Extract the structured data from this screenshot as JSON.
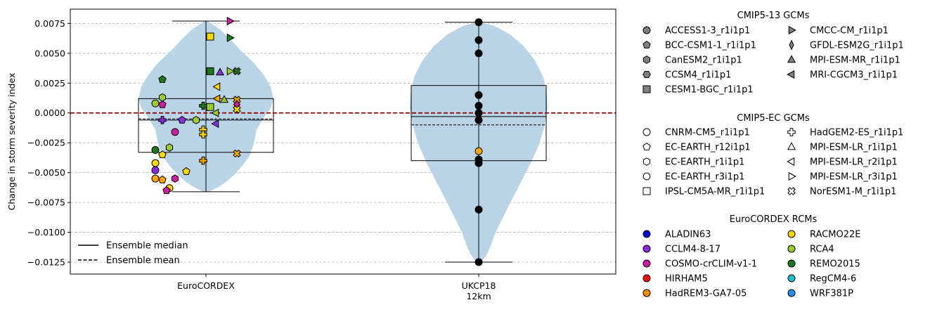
{
  "chart_data": {
    "type": "violin-scatter",
    "ylabel": "Change in storm severity index",
    "ylim": [
      -0.0135,
      0.0087
    ],
    "yticks": [
      0.0075,
      0.005,
      0.0025,
      0.0,
      -0.0025,
      -0.005,
      -0.0075,
      -0.01,
      -0.0125
    ],
    "ytick_labels": [
      "0.0075",
      "0.0050",
      "0.0025",
      "0.0000",
      "−0.0025",
      "−0.0050",
      "−0.0075",
      "−0.0100",
      "−0.0125"
    ],
    "grid": "horizontal dashed",
    "reference_line": {
      "y": 0.0,
      "color": "#8b0000",
      "style": "dashed"
    },
    "categories": [
      {
        "label_lines": [
          "EuroCORDEX"
        ]
      },
      {
        "label_lines": [
          "UKCP18",
          "12km"
        ]
      }
    ],
    "violin_color": "#b9d3e7",
    "groups": [
      {
        "whisker_low": -0.0066,
        "whisker_high": 0.0077,
        "q1": -0.0033,
        "q3": 0.0012,
        "median": -0.0006,
        "mean": -0.0005,
        "points": [
          {
            "y": 0.0077,
            "m": "tri-right",
            "c": "#cc1f9e"
          },
          {
            "y": 0.0064,
            "m": "square",
            "c": "#ffd700"
          },
          {
            "y": 0.0063,
            "m": "tri-right",
            "c": "#1a7a1a"
          },
          {
            "y": 0.0035,
            "m": "square",
            "c": "#1a7a1a"
          },
          {
            "y": 0.0035,
            "m": "tri-right",
            "c": "#9acd32"
          },
          {
            "y": 0.0034,
            "m": "triangle",
            "c": "#8a2be2"
          },
          {
            "y": 0.0035,
            "m": "cross-x",
            "c": "#1a7a1a"
          },
          {
            "y": 0.0028,
            "m": "pentagon",
            "c": "#1a7a1a"
          },
          {
            "y": 0.0022,
            "m": "tri-left",
            "c": "#ffd700"
          },
          {
            "y": 0.0013,
            "m": "hexagon",
            "c": "#9acd32"
          },
          {
            "y": 0.0012,
            "m": "tri-left",
            "c": "#ffa500"
          },
          {
            "y": 0.0011,
            "m": "triangle",
            "c": "#9acd32"
          },
          {
            "y": 0.0011,
            "m": "cross-x",
            "c": "#ffa500"
          },
          {
            "y": 0.0008,
            "m": "circle",
            "c": "#9acd32"
          },
          {
            "y": 0.0007,
            "m": "pentagon",
            "c": "#cc1f9e"
          },
          {
            "y": 0.0007,
            "m": "diamond",
            "c": "#cc1f9e"
          },
          {
            "y": 0.0006,
            "m": "plus",
            "c": "#1a7a1a"
          },
          {
            "y": 0.0005,
            "m": "square",
            "c": "#9acd32"
          },
          {
            "y": 0.0003,
            "m": "cross-x",
            "c": "#ffd700"
          },
          {
            "y": 0.0,
            "m": "tri-left",
            "c": "#9acd32"
          },
          {
            "y": -0.0006,
            "m": "pentagon",
            "c": "#8a2be2"
          },
          {
            "y": -0.0006,
            "m": "hexagon",
            "c": "#9acd32"
          },
          {
            "y": -0.0006,
            "m": "plus",
            "c": "#8a2be2"
          },
          {
            "y": -0.0009,
            "m": "tri-left",
            "c": "#8a2be2"
          },
          {
            "y": -0.0014,
            "m": "plus",
            "c": "#ffd700"
          },
          {
            "y": -0.0016,
            "m": "circle",
            "c": "#cc1f9e"
          },
          {
            "y": -0.0018,
            "m": "plus",
            "c": "#ffd700"
          },
          {
            "y": -0.0029,
            "m": "hexagon",
            "c": "#9acd32"
          },
          {
            "y": -0.0031,
            "m": "circle",
            "c": "#1a7a1a"
          },
          {
            "y": -0.0034,
            "m": "cross-x",
            "c": "#ffa500"
          },
          {
            "y": -0.0035,
            "m": "pentagon",
            "c": "#ffd700"
          },
          {
            "y": -0.004,
            "m": "plus",
            "c": "#ffa500"
          },
          {
            "y": -0.0042,
            "m": "circle",
            "c": "#ffd700"
          },
          {
            "y": -0.0048,
            "m": "circle",
            "c": "#8a2be2"
          },
          {
            "y": -0.0049,
            "m": "pentagon",
            "c": "#ffd700"
          },
          {
            "y": -0.0055,
            "m": "circle",
            "c": "#ffa500"
          },
          {
            "y": -0.0056,
            "m": "pentagon",
            "c": "#ffa500"
          },
          {
            "y": -0.0055,
            "m": "hexagon",
            "c": "#cc1f9e"
          },
          {
            "y": -0.0063,
            "m": "circle",
            "c": "#ffd700"
          },
          {
            "y": -0.0065,
            "m": "pentagon",
            "c": "#cc1f9e"
          }
        ]
      },
      {
        "whisker_low": -0.0125,
        "whisker_high": 0.0076,
        "q1": -0.004,
        "q3": 0.0023,
        "median": -0.0003,
        "mean": -0.001,
        "points": [
          {
            "y": 0.0076,
            "m": "circle",
            "c": "#000000"
          },
          {
            "y": 0.0061,
            "m": "circle",
            "c": "#000000"
          },
          {
            "y": 0.005,
            "m": "circle",
            "c": "#000000"
          },
          {
            "y": 0.0015,
            "m": "circle",
            "c": "#000000"
          },
          {
            "y": 0.0006,
            "m": "circle",
            "c": "#000000"
          },
          {
            "y": 0.0,
            "m": "circle",
            "c": "#000000"
          },
          {
            "y": -0.0006,
            "m": "circle",
            "c": "#000000"
          },
          {
            "y": -0.0032,
            "m": "circle",
            "c": "#ffa500"
          },
          {
            "y": -0.0039,
            "m": "circle",
            "c": "#000000"
          },
          {
            "y": -0.0042,
            "m": "circle",
            "c": "#000000"
          },
          {
            "y": -0.0081,
            "m": "circle",
            "c": "#000000"
          },
          {
            "y": -0.0125,
            "m": "circle",
            "c": "#000000"
          }
        ]
      }
    ],
    "legend_inside": [
      {
        "label": "Ensemble median",
        "style": "solid"
      },
      {
        "label": "Ensemble mean",
        "style": "dashed"
      }
    ],
    "legend_sections": [
      {
        "title": "CMIP5-13 GCMs",
        "filled": true,
        "items": [
          {
            "label": "ACCESS1-3_r1i1p1",
            "m": "circle"
          },
          {
            "label": "BCC-CSM1-1_r1i1p1",
            "m": "pentagon"
          },
          {
            "label": "CanESM2_r1i1p1",
            "m": "hexagon"
          },
          {
            "label": "CCSM4_r1i1p1",
            "m": "hexagon2"
          },
          {
            "label": "CESM1-BGC_r1i1p1",
            "m": "square"
          },
          {
            "label": "CMCC-CM_r1i1p1",
            "m": "tri-right"
          },
          {
            "label": "GFDL-ESM2G_r1i1p1",
            "m": "thin-diamond"
          },
          {
            "label": "MPI-ESM-MR_r1i1p1",
            "m": "triangle"
          },
          {
            "label": "MRI-CGCM3_r1i1p1",
            "m": "tri-left"
          }
        ]
      },
      {
        "title": "CMIP5-EC GCMs",
        "filled": false,
        "items": [
          {
            "label": "CNRM-CM5_r1i1p1",
            "m": "circle"
          },
          {
            "label": "EC-EARTH_r12i1p1",
            "m": "pentagon"
          },
          {
            "label": "EC-EARTH_r1i1p1",
            "m": "hexagon"
          },
          {
            "label": "EC-EARTH_r3i1p1",
            "m": "octagon"
          },
          {
            "label": "IPSL-CM5A-MR_r1i1p1",
            "m": "square"
          },
          {
            "label": "HadGEM2-ES_r1i1p1",
            "m": "plus"
          },
          {
            "label": "MPI-ESM-LR_r1i1p1",
            "m": "triangle"
          },
          {
            "label": "MPI-ESM-LR_r2i1p1",
            "m": "tri-left"
          },
          {
            "label": "MPI-ESM-LR_r3i1p1",
            "m": "tri-right"
          },
          {
            "label": "NorESM1-M_r1i1p1",
            "m": "cross-x"
          }
        ]
      },
      {
        "title": "EuroCORDEX RCMs",
        "filled": true,
        "items": [
          {
            "label": "ALADIN63",
            "c": "#0000cd"
          },
          {
            "label": "CCLM4-8-17",
            "c": "#8a2be2"
          },
          {
            "label": "COSMO-crCLIM-v1-1",
            "c": "#cc1f9e"
          },
          {
            "label": "HIRHAM5",
            "c": "#ee1111"
          },
          {
            "label": "HadREM3-GA7-05",
            "c": "#ff8c00"
          },
          {
            "label": "RACMO22E",
            "c": "#ffd700"
          },
          {
            "label": "RCA4",
            "c": "#9acd32"
          },
          {
            "label": "REMO2015",
            "c": "#1a7a1a"
          },
          {
            "label": "RegCM4-6",
            "c": "#20c0d0"
          },
          {
            "label": "WRF381P",
            "c": "#1e90ff"
          }
        ]
      }
    ]
  }
}
